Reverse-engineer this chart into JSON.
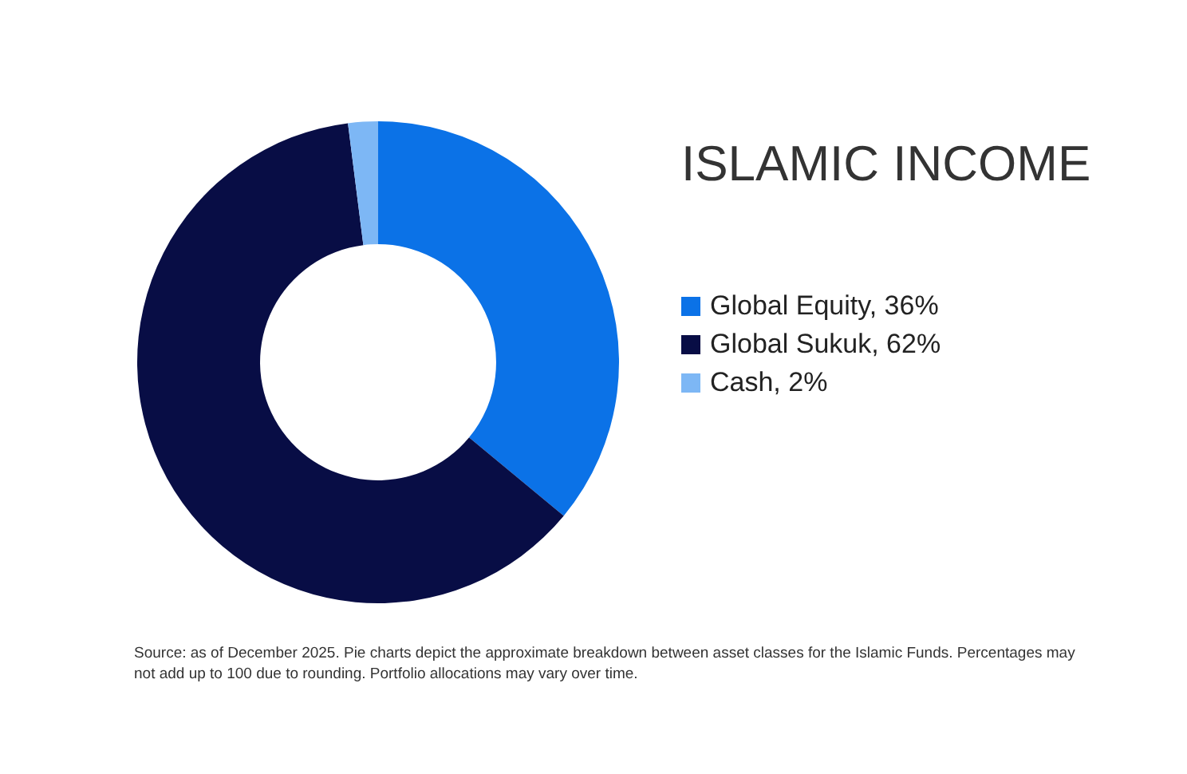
{
  "chart_data": {
    "type": "donut",
    "title": "ISLAMIC INCOME",
    "categories": [
      "Global Equity, 36%",
      "Global Sukuk, 62%",
      "Cash, 2%"
    ],
    "values": [
      36,
      62,
      2
    ],
    "colors": [
      "#0b72e7",
      "#080d45",
      "#7db7f5"
    ],
    "legend": "right",
    "annotations": [
      "Source: as of December 2025. Pie charts depict the approximate breakdown between asset classes for the Islamic Funds. Percentages may not add up to 100 due to rounding. Portfolio allocations may vary over time."
    ]
  }
}
